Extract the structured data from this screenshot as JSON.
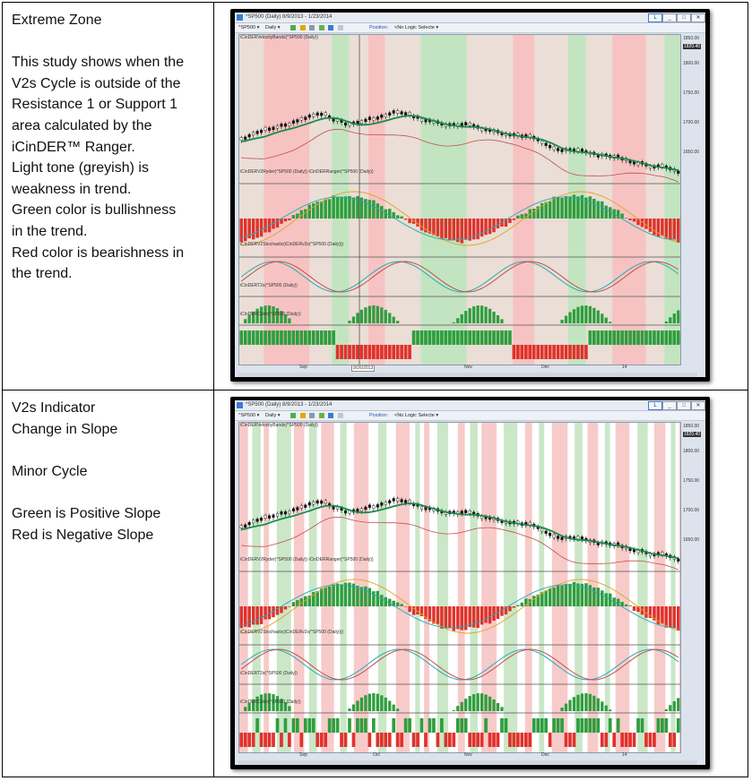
{
  "rows": [
    {
      "description_lines": [
        "Extreme Zone",
        "",
        "This study shows when the",
        "V2s Cycle is outside of the",
        "Resistance 1 or Support 1",
        "area calculated by the",
        "iCinDER™ Ranger.",
        "Light tone (greyish)  is",
        "weakness in trend.",
        "Green color is bullishness",
        "in the trend.",
        "Red color is bearishness in",
        "the trend."
      ],
      "screenshot": {
        "title": "*SP500 (Daily)  8/9/2013 - 1/23/2014",
        "toolbar_symbol": "^SP500 ▾",
        "toolbar_interval": "Daily ▾",
        "toolbar_position": "Position:",
        "toolbar_logic": "<No Logic Selecte ▾",
        "panel_labels": [
          "iCinDERVelocityBands(^SP500 (Daily))",
          "iCinDERV2Ryder(^SP500 (Daily)) iCinDERRanger(^SP500 (Daily))",
          "iCinDERV2Stochastic(iCinDERv2s(^SP500 (Daily)))",
          "iCinDERT2s(^SP500 (Daily))",
          "iCinDERColor(^SP500 (Daily))"
        ],
        "y_ticks": [
          "1850.00",
          "1820.40",
          "1800.00",
          "1750.00",
          "1700.00",
          "1650.00"
        ],
        "x_ticks": [
          "Sep",
          "9/26/2013",
          "Nov",
          "Dec",
          "14"
        ],
        "cursor_date": "9/26/2013"
      }
    },
    {
      "description_lines": [
        "V2s Indicator",
        "Change in Slope",
        "",
        "Minor Cycle",
        "",
        "Green is Positive Slope",
        "Red is Negative Slope"
      ],
      "screenshot": {
        "title": "*SP500 (Daily)  8/9/2013 - 1/23/2014",
        "toolbar_symbol": "^SP500 ▾",
        "toolbar_interval": "Daily ▾",
        "toolbar_position": "Position:",
        "toolbar_logic": "<No Logic Selecte ▾",
        "panel_labels": [
          "iCinDERVelocityBands(^SP500 (Daily))",
          "iCinDERV2Ryder(^SP500 (Daily)) iCinDERRanger(^SP500 (Daily))",
          "iCinDERV2Stochastic(iCinDERv2s(^SP500 (Daily)))",
          "iCinDERT2s(^SP500 (Daily))",
          "iCinDERColor(^SP500 (Daily))"
        ],
        "y_ticks": [
          "1850.00",
          "1820.40",
          "1800.00",
          "1750.00",
          "1700.00",
          "1650.00"
        ],
        "x_ticks": [
          "Sep",
          "Oct",
          "Nov",
          "Dec",
          "14"
        ]
      }
    }
  ],
  "colors": {
    "bull_green": "#2e9e3e",
    "bear_red": "#e0322c",
    "zone_green": "#b9dfb5",
    "zone_red": "#f4b9b7",
    "zone_grey": "#e6d8cf",
    "line_green": "#1a8a4a",
    "line_red": "#c0504d",
    "line_orange": "#e6a020",
    "line_teal": "#2aa8b8"
  }
}
